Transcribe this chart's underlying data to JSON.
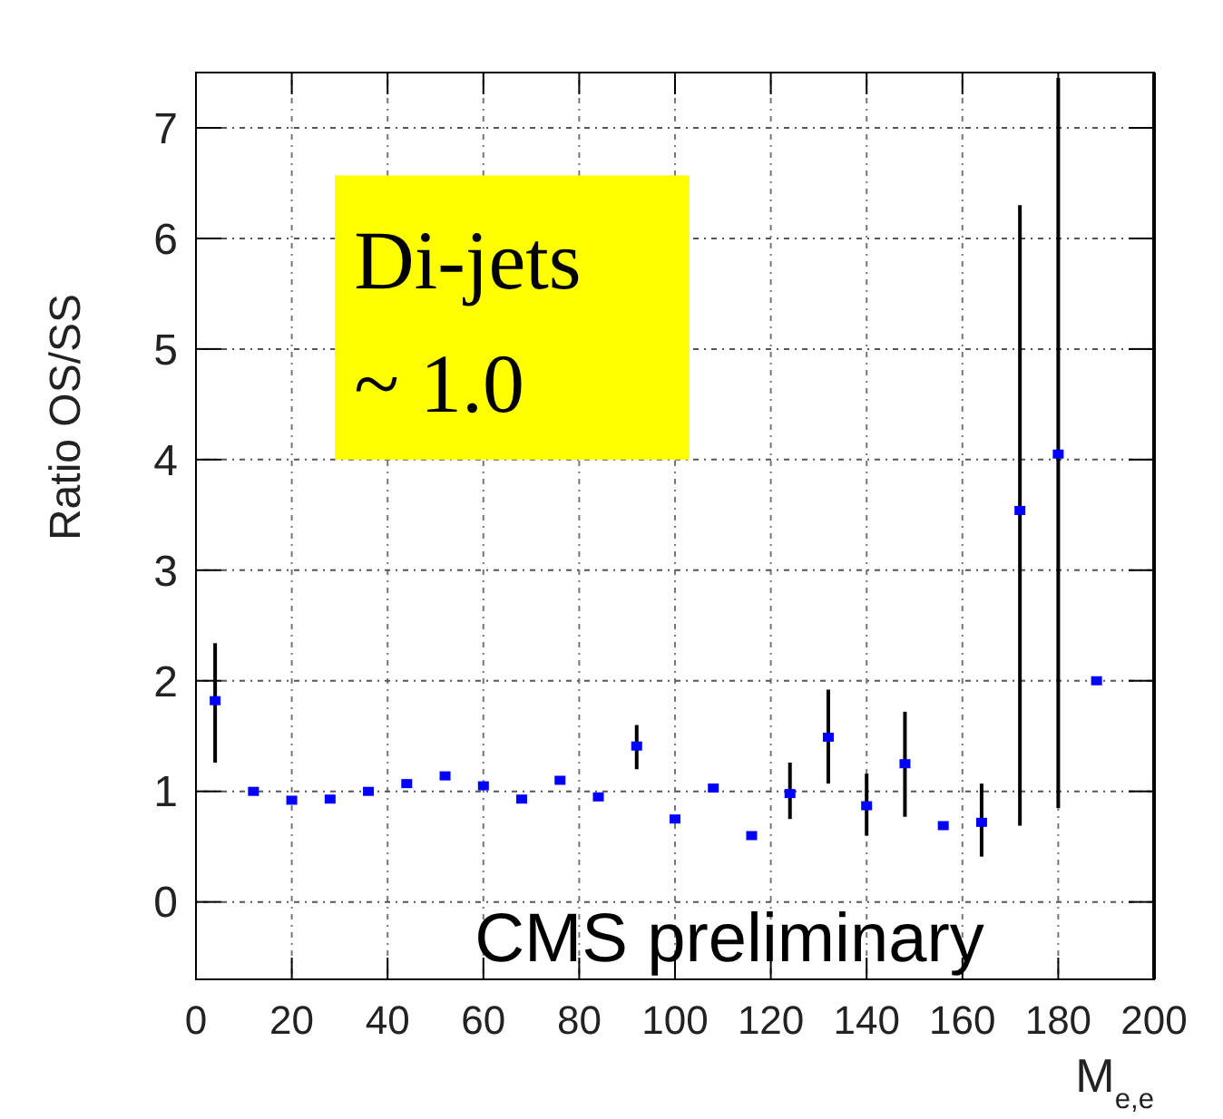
{
  "chart_data": {
    "type": "scatter",
    "xlabel": "M$_{e,e}$",
    "ylabel": "Ratio OS/SS",
    "x": [
      4,
      12,
      20,
      28,
      36,
      44,
      52,
      60,
      68,
      76,
      84,
      92,
      100,
      108,
      116,
      124,
      132,
      140,
      148,
      156,
      164,
      172,
      180,
      188
    ],
    "series": [
      {
        "color": "#0000ff",
        "values": [
          1.82,
          1.0,
          0.92,
          0.93,
          1.0,
          1.07,
          1.14,
          1.05,
          0.93,
          1.1,
          0.95,
          1.41,
          0.75,
          1.03,
          0.6,
          0.98,
          1.49,
          0.87,
          1.25,
          0.69,
          0.72,
          3.54,
          4.05,
          2.0
        ],
        "errors": [
          [
            1.26,
            2.34
          ],
          null,
          null,
          null,
          null,
          null,
          null,
          null,
          null,
          null,
          null,
          [
            1.2,
            1.6
          ],
          null,
          null,
          null,
          [
            0.75,
            1.26
          ],
          [
            1.07,
            1.92
          ],
          [
            0.6,
            1.16
          ],
          [
            0.77,
            1.72
          ],
          null,
          [
            0.41,
            1.07
          ],
          [
            0.69,
            6.3
          ],
          [
            0.85,
            7.45
          ],
          null
        ]
      }
    ],
    "xlim": [
      0,
      200
    ],
    "xticks": [
      0,
      20,
      40,
      60,
      80,
      100,
      120,
      140,
      160,
      180,
      200
    ],
    "ylim": [
      -0.7,
      7.5
    ],
    "yticks": [
      0,
      1,
      2,
      3,
      4,
      5,
      6,
      7
    ],
    "grid": true,
    "marker": "square",
    "annotations": [
      "Di-jets\n~ 1.0",
      "CMS preliminary"
    ]
  }
}
